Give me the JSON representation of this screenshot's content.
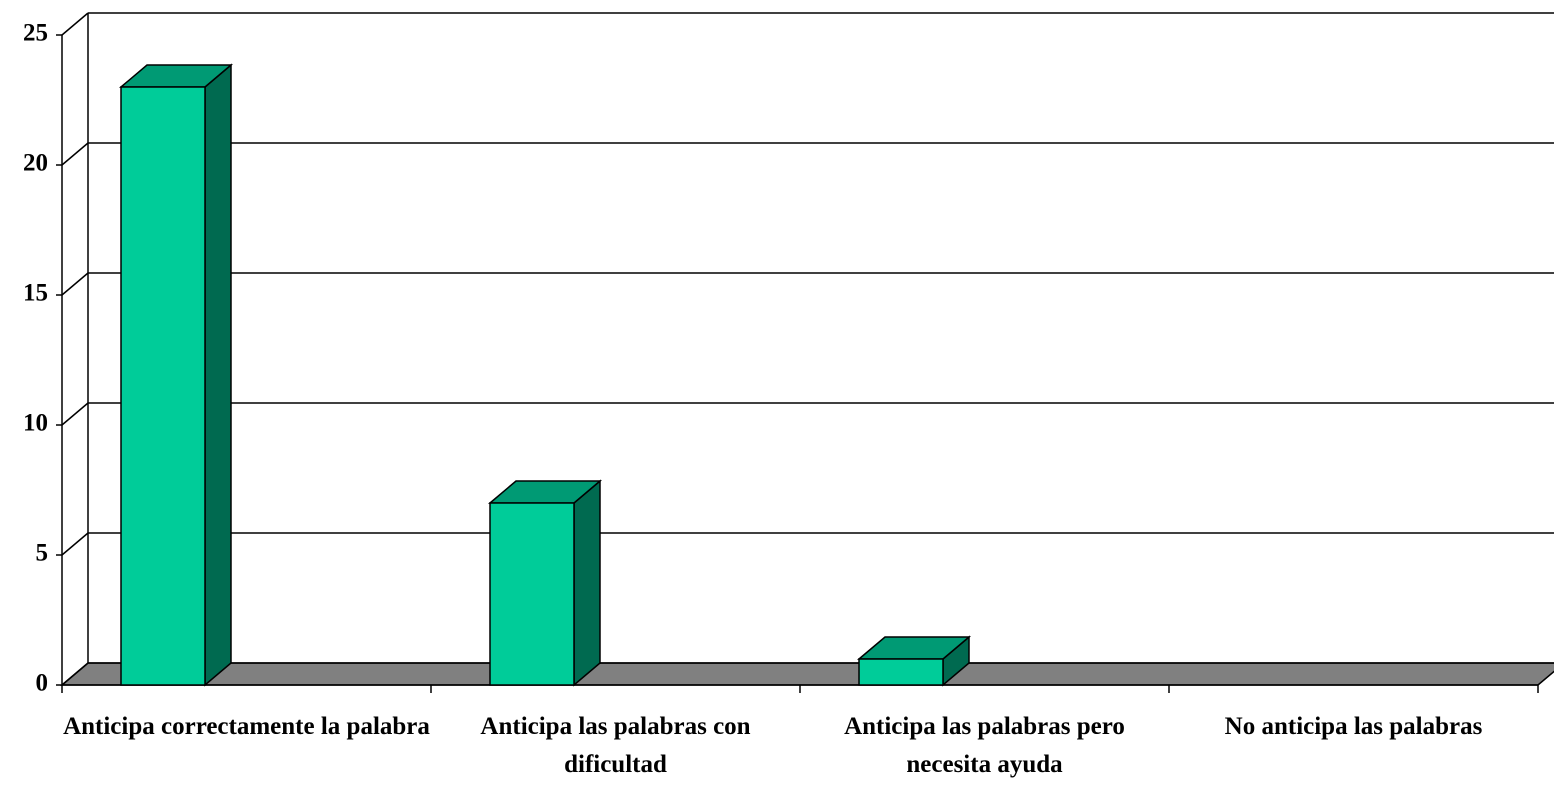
{
  "chart_data": {
    "type": "bar3d",
    "categories": [
      "Anticipa correctamente la palabra",
      "Anticipa las palabras con dificultad",
      "Anticipa las palabras pero necesita ayuda",
      "No anticipa las palabras"
    ],
    "values": [
      23,
      7,
      1,
      0
    ],
    "color": "#00cc99",
    "ylim": [
      0,
      25
    ],
    "yticks": [
      0,
      5,
      10,
      15,
      20,
      25
    ],
    "grid": true
  }
}
